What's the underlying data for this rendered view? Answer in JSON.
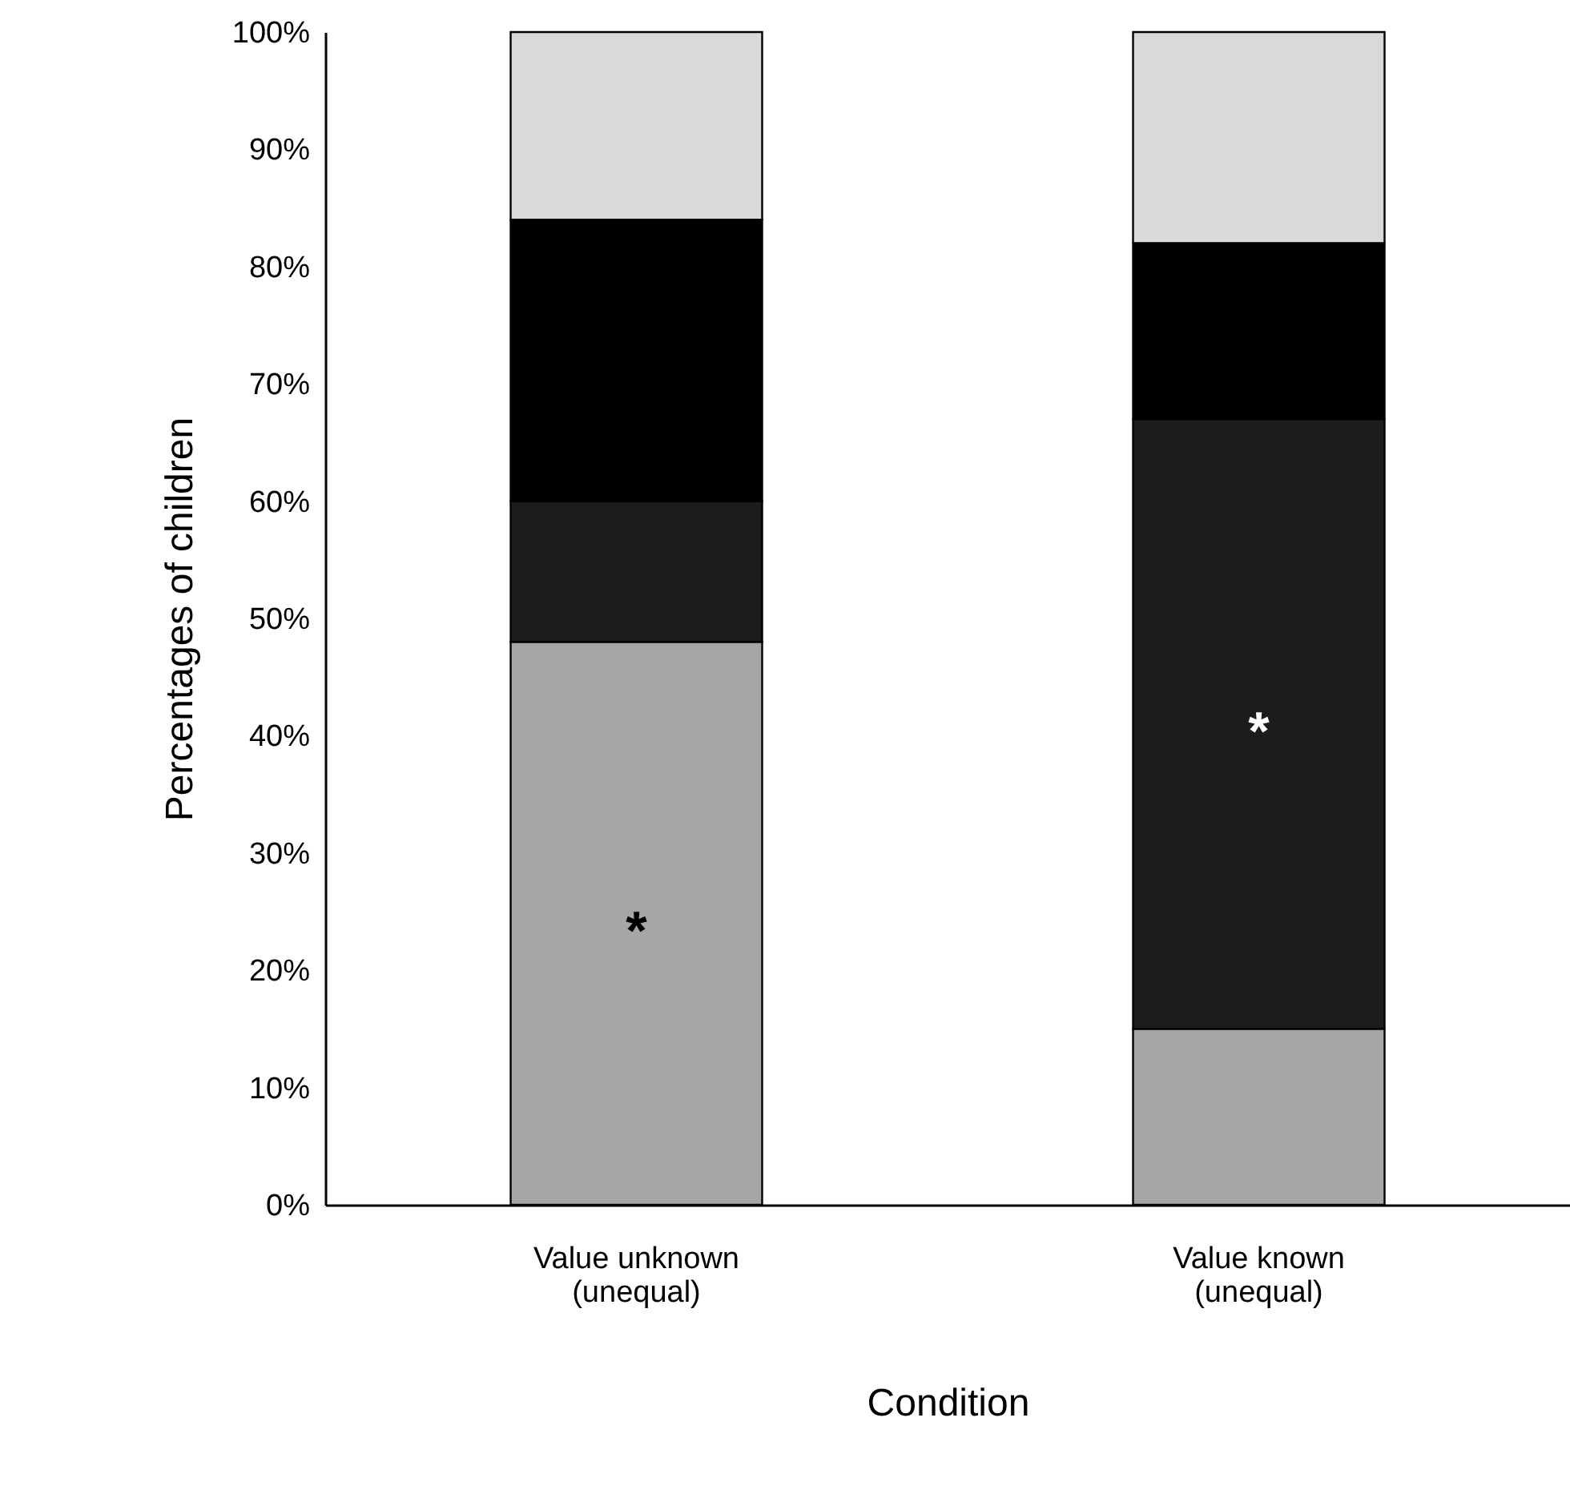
{
  "chart_data": {
    "type": "bar",
    "stacked": true,
    "xlabel": "Condition",
    "ylabel": "Percentages of children",
    "categories": [
      "Value unknown (unequal)",
      "Value known (unequal)"
    ],
    "series": [
      {
        "color": "#a6a6a6",
        "values": [
          48,
          15
        ]
      },
      {
        "color": "#1c1c1c",
        "values": [
          12,
          52
        ]
      },
      {
        "color": "#000000",
        "values": [
          24,
          15
        ]
      },
      {
        "color": "#d9d9d9",
        "values": [
          16,
          18
        ]
      }
    ],
    "ylim": [
      0,
      100
    ],
    "yticks": [
      {
        "value": 0,
        "label": "0%"
      },
      {
        "value": 10,
        "label": "10%"
      },
      {
        "value": 20,
        "label": "20%"
      },
      {
        "value": 30,
        "label": "30%"
      },
      {
        "value": 40,
        "label": "40%"
      },
      {
        "value": 50,
        "label": "50%"
      },
      {
        "value": 60,
        "label": "60%"
      },
      {
        "value": 70,
        "label": "70%"
      },
      {
        "value": 80,
        "label": "80%"
      },
      {
        "value": 90,
        "label": "90%"
      },
      {
        "value": 100,
        "label": "100%"
      }
    ],
    "annotations": [
      "*",
      "*"
    ],
    "grid": false
  }
}
